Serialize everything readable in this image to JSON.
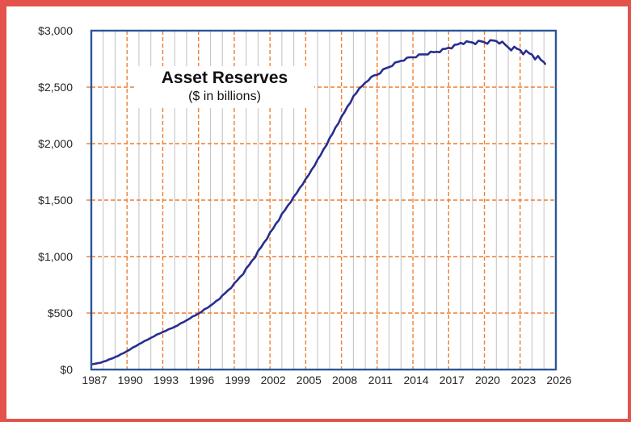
{
  "colors": {
    "frame": "#E3524B",
    "plot_border": "#2A5699",
    "line": "#272E8F",
    "minor_grid": "#C0C0C0",
    "major_grid": "#ED7D31",
    "text": "#262626",
    "background": "#FFFFFF"
  },
  "chart_data": {
    "type": "line",
    "title": "Asset Reserves",
    "subtitle": "($ in billions)",
    "grid": "on",
    "legend": "none",
    "x_axis": {
      "min": 1987,
      "max": 2026,
      "tick_interval": 3,
      "tick_labels": [
        "1987",
        "1990",
        "1993",
        "1996",
        "1999",
        "2002",
        "2005",
        "2008",
        "2011",
        "2014",
        "2017",
        "2020",
        "2023",
        "2026"
      ],
      "minor_gridline_years_step": 1,
      "major_gridline_years": [
        1990,
        1993,
        1996,
        1999,
        2002,
        2005,
        2008,
        2011,
        2014,
        2017,
        2020,
        2023
      ]
    },
    "y_axis": {
      "min": 0,
      "max": 3000,
      "tick_interval": 500,
      "tick_labels": [
        "$0",
        "$500",
        "$1,000",
        "$1,500",
        "$2,000",
        "$2,500",
        "$3,000"
      ]
    },
    "series": [
      {
        "name": "Asset Reserves ($ in billions)",
        "x_start": 1987.0,
        "x_step": 0.25,
        "values": [
          47,
          50,
          56,
          60,
          69,
          77,
          90,
          98,
          110,
          121,
          137,
          147,
          163,
          177,
          196,
          208,
          225,
          238,
          254,
          265,
          281,
          293,
          310,
          319,
          332,
          342,
          357,
          366,
          378,
          391,
          409,
          420,
          436,
          450,
          469,
          480,
          496,
          511,
          534,
          546,
          566,
          584,
          608,
          623,
          656,
          678,
          704,
          723,
          763,
          789,
          821,
          844,
          896,
          926,
          964,
          992,
          1049,
          1082,
          1124,
          1158,
          1213,
          1246,
          1291,
          1323,
          1378,
          1410,
          1452,
          1483,
          1531,
          1563,
          1608,
          1640,
          1687,
          1722,
          1771,
          1805,
          1859,
          1898,
          1950,
          1987,
          2048,
          2088,
          2142,
          2179,
          2238,
          2278,
          2328,
          2362,
          2419,
          2447,
          2489,
          2511,
          2540,
          2558,
          2591,
          2604,
          2609,
          2623,
          2658,
          2668,
          2678,
          2687,
          2718,
          2724,
          2732,
          2735,
          2761,
          2764,
          2764,
          2764,
          2789,
          2790,
          2790,
          2789,
          2814,
          2809,
          2813,
          2809,
          2837,
          2840,
          2848,
          2843,
          2875,
          2878,
          2892,
          2881,
          2906,
          2900,
          2895,
          2881,
          2911,
          2905,
          2897,
          2884,
          2916,
          2913,
          2908,
          2886,
          2903,
          2876,
          2852,
          2826,
          2858,
          2839,
          2830,
          2791,
          2823,
          2801,
          2788,
          2746,
          2776,
          2741,
          2721
        ],
        "last_point": [
          2025.1,
          2706
        ]
      }
    ]
  }
}
